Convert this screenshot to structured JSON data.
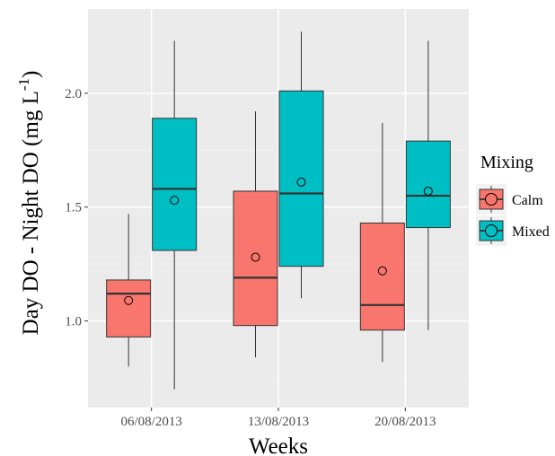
{
  "chart_data": {
    "type": "box",
    "title": "",
    "xlabel": "Weeks",
    "ylabel": {
      "main": "Day DO - Night DO (mg L",
      "superscript": "-1",
      "close": ")"
    },
    "ylim": [
      0.62,
      2.37
    ],
    "yticks": [
      1.0,
      1.5,
      2.0
    ],
    "ytick_labels": [
      "1.0",
      "1.5",
      "2.0"
    ],
    "categories": [
      "06/08/2013",
      "13/08/2013",
      "20/08/2013"
    ],
    "legend": {
      "title": "Mixing",
      "position": "right"
    },
    "grid": true,
    "series": [
      {
        "name": "Calm",
        "color": "#F8766D",
        "boxes": [
          {
            "min": 0.8,
            "q1": 0.93,
            "median": 1.12,
            "q3": 1.18,
            "max": 1.47,
            "mean": 1.09
          },
          {
            "min": 0.84,
            "q1": 0.98,
            "median": 1.19,
            "q3": 1.57,
            "max": 1.92,
            "mean": 1.28
          },
          {
            "min": 0.82,
            "q1": 0.96,
            "median": 1.07,
            "q3": 1.43,
            "max": 1.87,
            "mean": 1.22
          }
        ]
      },
      {
        "name": "Mixed",
        "color": "#00BFC4",
        "boxes": [
          {
            "min": 0.7,
            "q1": 1.31,
            "median": 1.58,
            "q3": 1.89,
            "max": 2.23,
            "mean": 1.53
          },
          {
            "min": 1.1,
            "q1": 1.24,
            "median": 1.56,
            "q3": 2.01,
            "max": 2.27,
            "mean": 1.61
          },
          {
            "min": 0.96,
            "q1": 1.41,
            "median": 1.55,
            "q3": 1.79,
            "max": 2.23,
            "mean": 1.57
          }
        ]
      }
    ]
  }
}
